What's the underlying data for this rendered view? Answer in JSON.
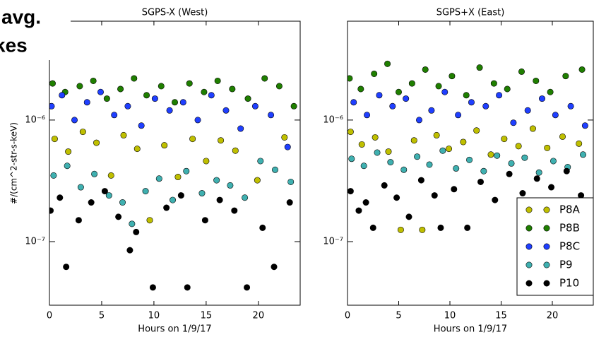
{
  "slide_text": [
    "avg.",
    "kes"
  ],
  "chart_data": [
    {
      "type": "scatter",
      "title": "SGPS-X (West)",
      "xlabel": "Hours on 1/9/17",
      "ylabel": "#/(cm^2-str-s-keV)",
      "log_y": true,
      "xlim": [
        0,
        24
      ],
      "ylim": [
        3e-08,
        6.5e-06
      ],
      "xticks": [
        0,
        5,
        10,
        15,
        20
      ],
      "yticks": [
        {
          "value": 1e-07,
          "label": "10⁻⁷"
        },
        {
          "value": 1e-06,
          "label": "10⁻⁶"
        }
      ],
      "series": [
        {
          "name": "P8A",
          "color": "#bfbf00",
          "x": [
            0.5,
            1.8,
            3.2,
            4.5,
            5.9,
            7.1,
            8.4,
            9.6,
            11.0,
            12.3,
            13.7,
            15.0,
            16.4,
            17.8,
            19.9,
            22.5
          ],
          "values": [
            7e-07,
            5.5e-07,
            8e-07,
            6.5e-07,
            3.5e-07,
            7.5e-07,
            5.8e-07,
            1.5e-07,
            6.2e-07,
            3.4e-07,
            7e-07,
            4.6e-07,
            6.8e-07,
            5.6e-07,
            3.2e-07,
            7.2e-07
          ]
        },
        {
          "name": "P8B",
          "color": "#1f7f00",
          "x": [
            0.3,
            1.5,
            2.9,
            4.2,
            5.5,
            6.8,
            8.1,
            9.3,
            10.7,
            12.0,
            13.4,
            14.8,
            16.1,
            17.5,
            19.0,
            20.6,
            22.0,
            23.4
          ],
          "values": [
            2e-06,
            1.7e-06,
            1.9e-06,
            2.1e-06,
            1.5e-06,
            1.8e-06,
            2.2e-06,
            1.6e-06,
            1.9e-06,
            1.4e-06,
            2e-06,
            1.7e-06,
            2.1e-06,
            1.8e-06,
            1.5e-06,
            2.2e-06,
            1.9e-06,
            1.3e-06
          ]
        },
        {
          "name": "P8C",
          "color": "#1f3fff",
          "x": [
            0.2,
            1.2,
            2.4,
            3.6,
            4.9,
            6.2,
            7.5,
            8.8,
            10.1,
            11.5,
            12.8,
            14.2,
            15.5,
            16.9,
            18.3,
            19.7,
            21.2,
            22.8
          ],
          "values": [
            1.3e-06,
            1.6e-06,
            1e-06,
            1.4e-06,
            1.7e-06,
            1.1e-06,
            1.3e-06,
            9e-07,
            1.5e-06,
            1.2e-06,
            1.4e-06,
            1e-06,
            1.6e-06,
            1.2e-06,
            8.5e-07,
            1.3e-06,
            1.1e-06,
            6e-07
          ]
        },
        {
          "name": "P9",
          "color": "#3fb0b0",
          "x": [
            0.4,
            1.7,
            3.0,
            4.3,
            5.7,
            7.0,
            7.9,
            9.2,
            10.5,
            11.8,
            13.1,
            14.6,
            16.0,
            17.3,
            18.7,
            20.2,
            21.6,
            23.1
          ],
          "values": [
            3.5e-07,
            4.2e-07,
            2.8e-07,
            3.6e-07,
            2.4e-07,
            2.1e-07,
            1.4e-07,
            2.6e-07,
            3.3e-07,
            2.2e-07,
            3.8e-07,
            2.5e-07,
            3.2e-07,
            2.9e-07,
            2.3e-07,
            4.6e-07,
            3.9e-07,
            3.1e-07
          ]
        },
        {
          "name": "P10",
          "color": "#000000",
          "x": [
            0.1,
            1.0,
            1.6,
            2.8,
            4.0,
            5.3,
            6.6,
            7.7,
            8.3,
            9.9,
            11.2,
            12.6,
            13.2,
            14.9,
            16.3,
            17.7,
            18.9,
            20.4,
            21.5,
            23.0
          ],
          "values": [
            1.8e-07,
            2.3e-07,
            6.2e-08,
            1.5e-07,
            2.1e-07,
            2.6e-07,
            1.6e-07,
            8.5e-08,
            1.2e-07,
            4.2e-08,
            1.9e-07,
            2.4e-07,
            4.2e-08,
            1.5e-07,
            2.2e-07,
            1.8e-07,
            4.2e-08,
            1.3e-07,
            6.2e-08,
            2.1e-07
          ]
        }
      ]
    },
    {
      "type": "scatter",
      "title": "SGPS+X (East)",
      "xlabel": "Hours on 1/9/17",
      "log_y": true,
      "legend": "lower right",
      "xlim": [
        0,
        24
      ],
      "ylim": [
        3e-08,
        6.5e-06
      ],
      "xticks": [
        0,
        5,
        10,
        15,
        20
      ],
      "yticks": [
        {
          "value": 1e-07,
          "label": "10⁻⁷"
        },
        {
          "value": 1e-06,
          "label": "10⁻⁶"
        }
      ],
      "series": [
        {
          "name": "P8A",
          "color": "#bfbf00",
          "x": [
            0.3,
            1.4,
            2.7,
            4.0,
            5.2,
            6.5,
            7.3,
            8.7,
            9.9,
            11.3,
            12.6,
            14.0,
            15.3,
            16.7,
            18.1,
            19.5,
            21.0,
            22.6
          ],
          "values": [
            8e-07,
            6.3e-07,
            7.2e-07,
            5.5e-07,
            1.25e-07,
            6.8e-07,
            1.25e-07,
            7.5e-07,
            5.8e-07,
            6.6e-07,
            8.2e-07,
            5.2e-07,
            7e-07,
            6.1e-07,
            8.5e-07,
            5.9e-07,
            7.3e-07,
            6.4e-07
          ]
        },
        {
          "name": "P8B",
          "color": "#1f7f00",
          "x": [
            0.2,
            1.3,
            2.6,
            3.9,
            5.0,
            6.3,
            7.6,
            8.9,
            10.2,
            11.6,
            12.9,
            14.3,
            15.6,
            17.0,
            18.4,
            19.8,
            21.3,
            22.9
          ],
          "values": [
            2.2e-06,
            1.8e-06,
            2.4e-06,
            2.9e-06,
            1.7e-06,
            2e-06,
            2.6e-06,
            1.9e-06,
            2.3e-06,
            1.6e-06,
            2.7e-06,
            2e-06,
            1.8e-06,
            2.5e-06,
            2.1e-06,
            1.7e-06,
            2.3e-06,
            2.6e-06
          ]
        },
        {
          "name": "P8C",
          "color": "#1f3fff",
          "x": [
            0.6,
            1.9,
            3.1,
            4.4,
            5.7,
            7.0,
            8.2,
            9.5,
            10.8,
            12.1,
            13.5,
            14.8,
            16.2,
            17.6,
            19.0,
            20.3,
            21.8,
            23.2
          ],
          "values": [
            1.4e-06,
            1.1e-06,
            1.6e-06,
            1.3e-06,
            1.5e-06,
            1e-06,
            1.2e-06,
            1.7e-06,
            1.1e-06,
            1.4e-06,
            1.3e-06,
            1.6e-06,
            9.5e-07,
            1.2e-06,
            1.5e-06,
            1.1e-06,
            1.3e-06,
            9e-07
          ]
        },
        {
          "name": "P9",
          "color": "#3fb0b0",
          "x": [
            0.4,
            1.6,
            2.9,
            4.2,
            5.5,
            6.8,
            8.0,
            9.3,
            10.6,
            11.9,
            13.3,
            14.6,
            16.0,
            17.3,
            18.7,
            20.1,
            21.5,
            23.0
          ],
          "values": [
            4.8e-07,
            4.2e-07,
            5.4e-07,
            4.5e-07,
            3.9e-07,
            5e-07,
            4.3e-07,
            5.6e-07,
            4e-07,
            4.7e-07,
            3.8e-07,
            5.1e-07,
            4.4e-07,
            4.9e-07,
            3.7e-07,
            4.6e-07,
            4.1e-07,
            5.2e-07
          ]
        },
        {
          "name": "P10",
          "color": "#000000",
          "x": [
            0.3,
            1.1,
            1.8,
            2.5,
            3.6,
            4.8,
            6.0,
            7.2,
            8.5,
            9.1,
            10.4,
            11.7,
            13.0,
            14.4,
            15.8,
            17.1,
            18.5,
            19.9,
            21.4,
            22.8
          ],
          "values": [
            2.6e-07,
            1.8e-07,
            2.1e-07,
            1.3e-07,
            2.9e-07,
            2.3e-07,
            1.6e-07,
            3.2e-07,
            2.4e-07,
            1.3e-07,
            2.7e-07,
            1.3e-07,
            3.1e-07,
            2.2e-07,
            3.6e-07,
            2.5e-07,
            3.3e-07,
            2.8e-07,
            3.8e-07,
            2.4e-07
          ]
        }
      ]
    }
  ]
}
